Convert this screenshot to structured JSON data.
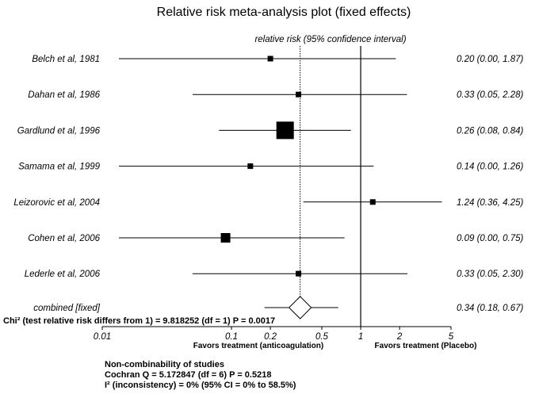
{
  "chart_data": {
    "type": "forest",
    "title": "Relative risk meta-analysis plot (fixed effects)",
    "column_header": "relative risk (95% confidence interval)",
    "x_scale": "log",
    "xlim": [
      0.01,
      5
    ],
    "x_ticks": [
      0.01,
      0.1,
      0.2,
      0.5,
      1,
      2,
      5
    ],
    "x_tick_labels": [
      "0.01",
      "0.1",
      "0.2",
      "0.5",
      "1",
      "2",
      "5"
    ],
    "reference_line": 1,
    "pooled_line": 0.34,
    "studies": [
      {
        "name": "Belch et al, 1981",
        "rr": 0.2,
        "lower": 0.0,
        "upper": 1.87,
        "ci_text": "0.20 (0.00, 1.87)",
        "weight": "small"
      },
      {
        "name": "Dahan et al, 1986",
        "rr": 0.33,
        "lower": 0.05,
        "upper": 2.28,
        "ci_text": "0.33 (0.05, 2.28)",
        "weight": "small"
      },
      {
        "name": "Gardlund et al, 1996",
        "rr": 0.26,
        "lower": 0.08,
        "upper": 0.84,
        "ci_text": "0.26 (0.08, 0.84)",
        "weight": "large"
      },
      {
        "name": "Samama et al, 1999",
        "rr": 0.14,
        "lower": 0.0,
        "upper": 1.26,
        "ci_text": "0.14 (0.00, 1.26)",
        "weight": "small"
      },
      {
        "name": "Leizorovic et al, 2004",
        "rr": 1.24,
        "lower": 0.36,
        "upper": 4.25,
        "ci_text": "1.24 (0.36, 4.25)",
        "weight": "small"
      },
      {
        "name": "Cohen et al, 2006",
        "rr": 0.09,
        "lower": 0.0,
        "upper": 0.75,
        "ci_text": "0.09 (0.00, 0.75)",
        "weight": "medium"
      },
      {
        "name": "Lederle et al, 2006",
        "rr": 0.33,
        "lower": 0.05,
        "upper": 2.3,
        "ci_text": "0.33 (0.05, 2.30)",
        "weight": "small"
      }
    ],
    "combined": {
      "name": "combined [fixed]",
      "rr": 0.34,
      "lower": 0.18,
      "upper": 0.67,
      "ci_text": "0.34 (0.18, 0.67)"
    },
    "chi_text": "Chi² (test relative risk differs from 1) = 9.818252  (df = 1)  P = 0.0017",
    "favors_left": "Favors treatment (anticoagulation)",
    "favors_right": "Favors treatment (Placebo)",
    "heterogeneity": [
      "Non-combinability of studies",
      "Cochran Q = 5.172847  (df = 6)  P = 0.5218",
      "I² (inconsistency) = 0% (95% CI = 0% to 58.5%)"
    ]
  }
}
